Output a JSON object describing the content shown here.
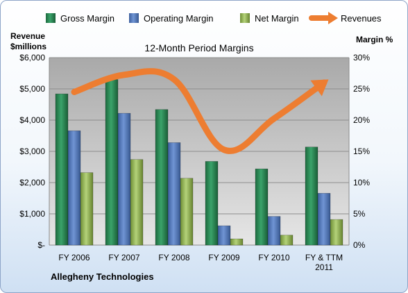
{
  "chart_data": {
    "type": "bar",
    "title": "12-Month Period Margins",
    "categories": [
      "FY 2006",
      "FY 2007",
      "FY 2008",
      "FY 2009",
      "FY 2010",
      "FY & TTM 2011"
    ],
    "category_lines": [
      [
        "FY 2006"
      ],
      [
        "FY 2007"
      ],
      [
        "FY 2008"
      ],
      [
        "FY 2009"
      ],
      [
        "FY 2010"
      ],
      [
        "FY & TTM",
        "2011"
      ]
    ],
    "series": [
      {
        "name": "Gross Margin",
        "axis": "right",
        "type": "bar",
        "color": "#2e8b57",
        "values": [
          24.2,
          26.5,
          21.7,
          13.4,
          12.2,
          15.7
        ]
      },
      {
        "name": "Operating Margin",
        "axis": "right",
        "type": "bar",
        "color": "#5a7dbf",
        "values": [
          18.3,
          21.1,
          16.4,
          3.1,
          4.6,
          8.3
        ]
      },
      {
        "name": "Net Margin",
        "axis": "right",
        "type": "bar",
        "color": "#9bbb59",
        "values": [
          11.6,
          13.7,
          10.7,
          1.0,
          1.6,
          4.1
        ]
      },
      {
        "name": "Revenues",
        "axis": "left",
        "type": "line",
        "color": "#ed7d31",
        "values": [
          4900,
          5450,
          5300,
          3050,
          4050,
          5200
        ]
      }
    ],
    "left_axis": {
      "label_lines": [
        "Revenue",
        "$millions"
      ],
      "ticks": [
        "$-",
        "$1,000",
        "$2,000",
        "$3,000",
        "$4,000",
        "$5,000",
        "$6,000"
      ],
      "range": [
        0,
        6000
      ]
    },
    "right_axis": {
      "label": "Margin %",
      "ticks": [
        "0%",
        "5%",
        "10%",
        "15%",
        "20%",
        "25%",
        "30%"
      ],
      "range": [
        0,
        30
      ]
    },
    "legend_position": "top",
    "grid": true
  },
  "footer": {
    "company": "Allegheny Technologies"
  }
}
